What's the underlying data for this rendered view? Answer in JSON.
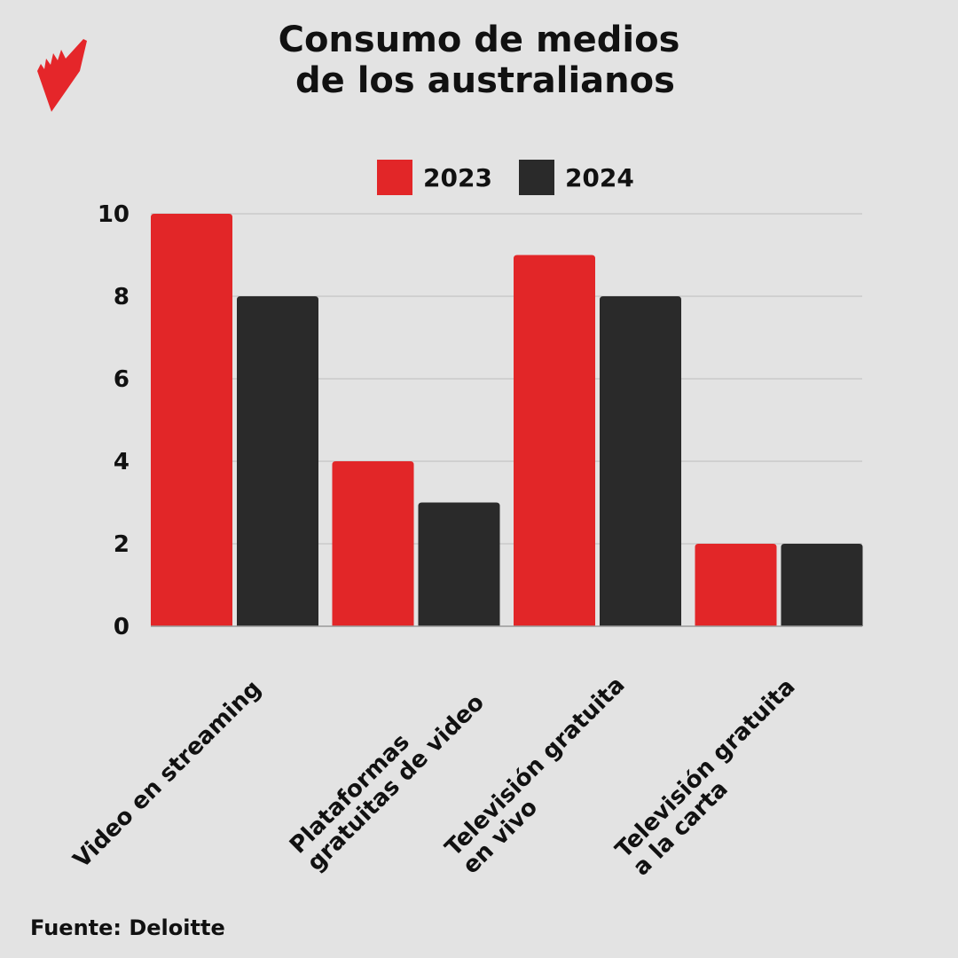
{
  "title": {
    "line1": "Consumo de medios",
    "line2": " de los australianos"
  },
  "logo": {
    "name": "SBS logo",
    "color": "#e5262a"
  },
  "source": "Fuente: Deloitte",
  "chart_data": {
    "type": "bar",
    "title": "Consumo de medios de los australianos",
    "categories": [
      "Video en streaming",
      "Plataformas\ngratuitas de video",
      "Televisión gratuita\nen vivo",
      "Televisión gratuita\na la carta"
    ],
    "series": [
      {
        "name": "2023",
        "values": [
          10,
          4,
          9,
          2
        ],
        "color": "#e22628"
      },
      {
        "name": "2024",
        "values": [
          8,
          3,
          8,
          2
        ],
        "color": "#2a2a2a"
      }
    ],
    "yticks": [
      "0",
      "2",
      "4",
      "6",
      "8",
      "10"
    ],
    "ylim": [
      0,
      10
    ],
    "grid": true,
    "legend": "top"
  }
}
